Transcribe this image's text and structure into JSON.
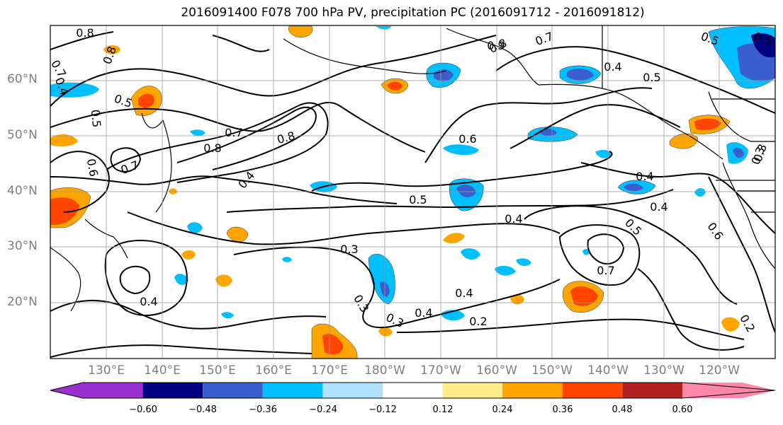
{
  "title": "2016091400 F078 700 hPa PV, precipitation PC (2016091712 - 2016091812)",
  "lat_labels": [
    "60°N",
    "50°N",
    "40°N",
    "30°N",
    "20°N"
  ],
  "lon_labels": [
    "130°E",
    "140°E",
    "150°E",
    "160°E",
    "170°E",
    "180°W",
    "170°W",
    "160°W",
    "150°W",
    "140°W",
    "130°W",
    "120°W"
  ],
  "colorbar": {
    "colors": [
      "#9b30d0",
      "#000080",
      "#3a5fcd",
      "#00bfff",
      "#b0e2ff",
      "#ffffff",
      "#ffec8b",
      "#ffa500",
      "#ff4500",
      "#b22222",
      "#ff88aa"
    ],
    "ticks": [
      "−0.60",
      "−0.48",
      "−0.36",
      "−0.24",
      "−0.12",
      "0.12",
      "0.24",
      "0.36",
      "0.48",
      "0.60"
    ]
  },
  "contour_labels": [
    "0.8",
    "0.7",
    "0.8",
    "0.6",
    "0.7",
    "0.4",
    "0.5",
    "0.5",
    "0.4",
    "0.7",
    "0.8",
    "0.8",
    "0.7",
    "0.9",
    "0.4",
    "0.8",
    "0.6",
    "0.5",
    "0.4",
    "0.4",
    "0.4",
    "0.5",
    "0.3",
    "0.6",
    "0.5",
    "0.5",
    "0.7",
    "0.3",
    "0.4",
    "0.3",
    "0.3",
    "0.4",
    "0.4",
    "0.2",
    "0.5",
    "0.2",
    "0.3"
  ]
}
